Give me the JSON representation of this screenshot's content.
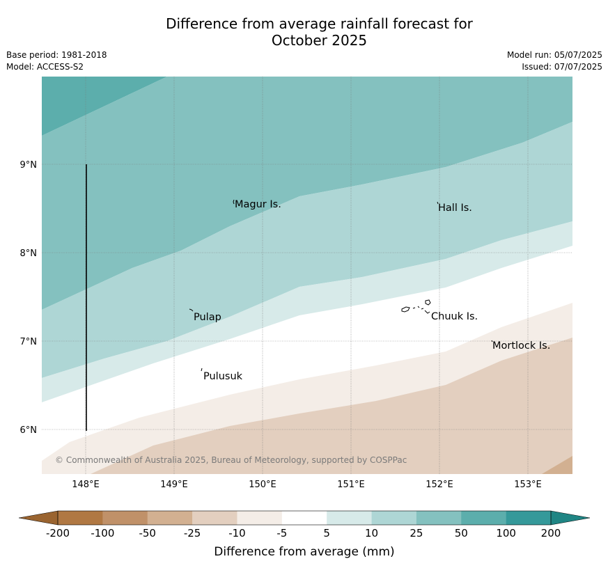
{
  "header": {
    "title_line1": "Difference from average rainfall forecast for",
    "title_line2": "October 2025",
    "base_period": "Base period: 1981-2018",
    "model": "Model: ACCESS-S2",
    "model_run": "Model run: 05/07/2025",
    "issued": "Issued: 07/07/2025"
  },
  "map": {
    "lon_range": [
      147.5,
      153.5
    ],
    "lat_range": [
      5.5,
      10.0
    ],
    "lon_ticks": [
      "148°E",
      "149°E",
      "150°E",
      "151°E",
      "152°E",
      "153°E"
    ],
    "lat_ticks": [
      "9°N",
      "8°N",
      "7°N",
      "6°N"
    ],
    "places": [
      {
        "name": "Magur Is.",
        "lon": 149.67,
        "lat": 8.55
      },
      {
        "name": "Hall Is.",
        "lon": 151.98,
        "lat": 8.52
      },
      {
        "name": "Pulap",
        "lon": 149.2,
        "lat": 7.3
      },
      {
        "name": "Chuuk Is.",
        "lon": 151.88,
        "lat": 7.33
      },
      {
        "name": "Mortlock Is.",
        "lon": 152.6,
        "lat": 6.97
      },
      {
        "name": "Pulusuk",
        "lon": 149.3,
        "lat": 6.63
      }
    ],
    "copyright": "© Commonwealth of Australia 2025, Bureau of Meteorology, supported by COSPPac"
  },
  "legend": {
    "title": "Difference from average (mm)",
    "ticks": [
      "-200",
      "-100",
      "-50",
      "-25",
      "-10",
      "-5",
      "5",
      "10",
      "25",
      "50",
      "100",
      "200"
    ],
    "colors": [
      "#b07843",
      "#c09169",
      "#d2b091",
      "#e3cfbf",
      "#f4ede7",
      "#ffffff",
      "#d7eae9",
      "#aed6d5",
      "#84c1bf",
      "#5caeac",
      "#35999a"
    ],
    "under_color": "#9a6430",
    "over_color": "#1f8584"
  }
}
